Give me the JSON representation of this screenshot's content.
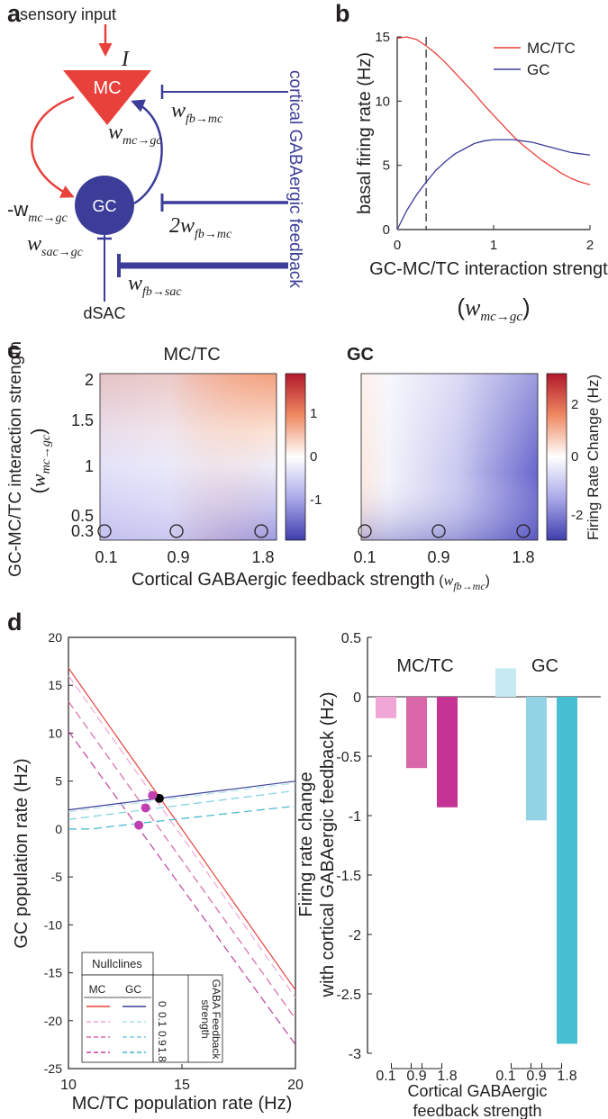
{
  "panel_labels": {
    "a": "a",
    "b": "b",
    "c": "c",
    "d": "d"
  },
  "colors": {
    "red": "#e8403a",
    "blue": "#3c3d98",
    "axis": "#231f20"
  },
  "panel_a": {
    "sensory_input": "sensory input",
    "input_symbol": "I",
    "mc_label": "MC",
    "gc_label": "GC",
    "dsac_label": "dSAC",
    "cortical_feedback": "cortical GABAergic feedback",
    "w": "w",
    "minus_w": "-w",
    "two_w": "2w",
    "sub_fb_mc": "fb→mc",
    "sub_mc_gc": "mc→gc",
    "sub_sac_gc": "sac→gc",
    "sub_fb_sac": "fb→sac"
  },
  "panel_d_inset": {
    "title": "Nullclines",
    "col_mc": "MC",
    "col_gc": "GC",
    "level_labels": [
      "0",
      "0.1",
      "0.9",
      "1.8"
    ],
    "axis_label": "GABA Feedback strength"
  },
  "chart_data": [
    {
      "id": "b",
      "type": "line",
      "xlabel": "GC-MC/TC interaction strength",
      "xlabel_symbol": "w",
      "xlabel_sub": "mc→gc",
      "ylabel": "basal firing rate (Hz)",
      "xlim": [
        0,
        2
      ],
      "ylim": [
        0,
        15
      ],
      "xticks": [
        0,
        1,
        2
      ],
      "yticks": [
        0,
        5,
        10,
        15
      ],
      "marker_x": 0.3,
      "x": [
        0,
        0.1,
        0.2,
        0.3,
        0.4,
        0.5,
        0.6,
        0.7,
        0.8,
        0.9,
        1.0,
        1.1,
        1.2,
        1.3,
        1.4,
        1.5,
        1.6,
        1.7,
        1.8,
        1.9,
        2.0
      ],
      "series": [
        {
          "name": "MC/TC",
          "color": "#e8403a",
          "values": [
            14.9,
            15.0,
            14.8,
            14.3,
            13.7,
            13.0,
            12.2,
            11.4,
            10.6,
            9.7,
            8.9,
            8.1,
            7.3,
            6.6,
            6.0,
            5.4,
            4.9,
            4.4,
            4.0,
            3.7,
            3.5
          ]
        },
        {
          "name": "GC",
          "color": "#3c3d98",
          "values": [
            0,
            1.5,
            2.7,
            3.7,
            4.6,
            5.3,
            5.9,
            6.3,
            6.7,
            6.9,
            7.0,
            7.0,
            7.0,
            6.9,
            6.8,
            6.6,
            6.4,
            6.2,
            6.0,
            5.9,
            5.8
          ]
        }
      ]
    },
    {
      "id": "c_mc",
      "type": "heatmap",
      "title": "MC/TC",
      "xlabel": "Cortical GABAergic feedback strength",
      "xlabel_symbol": "w",
      "xlabel_sub": "fb→mc",
      "ylabel": "GC-MC/TC interaction strength",
      "ylabel_symbol": "w",
      "ylabel_sub": "mc→gc",
      "xticks": [
        "0.1",
        "0.9",
        "1.8"
      ],
      "yticks": [
        "0.3",
        "0.5",
        "1",
        "1.5",
        "2"
      ],
      "colorbar_ticks": [
        "1",
        "0",
        "-1"
      ],
      "colorbar_range": [
        -1.7,
        1.7
      ],
      "circles_at": {
        "x": [
          0.1,
          0.9,
          1.8
        ],
        "y": 0.3
      }
    },
    {
      "id": "c_gc",
      "type": "heatmap",
      "title": "GC",
      "xticks": [
        "0.1",
        "0.9",
        "1.8"
      ],
      "colorbar_ticks": [
        "2",
        "0",
        "-2"
      ],
      "colorbar_label": "Firing Rate Change (Hz)",
      "colorbar_range": [
        -3,
        3
      ],
      "circles_at": {
        "x": [
          0.1,
          0.9,
          1.8
        ],
        "y": 0.3
      }
    },
    {
      "id": "d_nullclines",
      "type": "line",
      "xlabel": "MC/TC population rate (Hz)",
      "ylabel": "GC population rate (Hz)",
      "xlim": [
        10,
        20
      ],
      "ylim": [
        -25,
        20
      ],
      "xticks": [
        10,
        15,
        20
      ],
      "yticks": [
        20,
        15,
        10,
        5,
        0,
        -5,
        -10,
        -15,
        -20,
        -25
      ],
      "feedback_levels": [
        0,
        0.1,
        0.9,
        1.8
      ],
      "mc_nullclines": [
        {
          "level": "0",
          "color": "#e8403a",
          "dash": false,
          "x": [
            10,
            20
          ],
          "y": [
            16.8,
            -16.8
          ]
        },
        {
          "level": "0.1",
          "color": "#f0a6d6",
          "dash": true,
          "x": [
            10,
            20
          ],
          "y": [
            16.0,
            -17.6
          ]
        },
        {
          "level": "0.9",
          "color": "#d966a8",
          "dash": true,
          "x": [
            10,
            20
          ],
          "y": [
            13.3,
            -19.8
          ]
        },
        {
          "level": "1.8",
          "color": "#c040a0",
          "dash": true,
          "x": [
            10,
            20
          ],
          "y": [
            10.2,
            -22.5
          ]
        }
      ],
      "gc_nullclines": [
        {
          "level": "0",
          "color": "#3c3d98",
          "dash": false,
          "x": [
            10,
            20
          ],
          "y": [
            2.0,
            5.0
          ]
        },
        {
          "level": "0.1",
          "color": "#b0e4ec",
          "dash": true,
          "x": [
            10,
            20
          ],
          "y": [
            1.8,
            4.8
          ]
        },
        {
          "level": "0.9",
          "color": "#7ad0e0",
          "dash": true,
          "x": [
            10,
            20
          ],
          "y": [
            1.0,
            4.0
          ]
        },
        {
          "level": "1.8",
          "color": "#3fb4cf",
          "dash": true,
          "x": [
            10,
            11,
            12,
            20
          ],
          "y": [
            0,
            0,
            0.3,
            2.4
          ]
        }
      ],
      "fixed_points": [
        {
          "level": "0",
          "x": 14.0,
          "y": 3.2,
          "color": "#000000"
        },
        {
          "level": "0.1",
          "x": 13.7,
          "y": 3.5,
          "color": "#c040b0"
        },
        {
          "level": "0.9",
          "x": 13.4,
          "y": 2.2,
          "color": "#c040b0"
        },
        {
          "level": "1.8",
          "x": 13.1,
          "y": 0.4,
          "color": "#c040b0"
        }
      ]
    },
    {
      "id": "d_bars",
      "type": "bar",
      "ylabel": "Firing rate change with cortical GABAergic feedback (Hz)",
      "xlabel": "Cortical GABAergic feedback strength",
      "ylim": [
        -3,
        0.5
      ],
      "yticks": [
        "0.5",
        "0",
        "-0.5",
        "-1",
        "-1.5",
        "-2",
        "-2.5",
        "-3"
      ],
      "categories": [
        "0.1",
        "0.9",
        "1.8"
      ],
      "series": [
        {
          "name": "MC/TC",
          "values": [
            -0.18,
            -0.6,
            -0.93
          ],
          "colors": [
            "#f0a6d6",
            "#d966a8",
            "#c53395"
          ]
        },
        {
          "name": "GC",
          "values": [
            0.24,
            -1.04,
            -2.92
          ],
          "colors": [
            "#c6e9f2",
            "#92d3e6",
            "#45bfd1"
          ]
        }
      ]
    }
  ]
}
